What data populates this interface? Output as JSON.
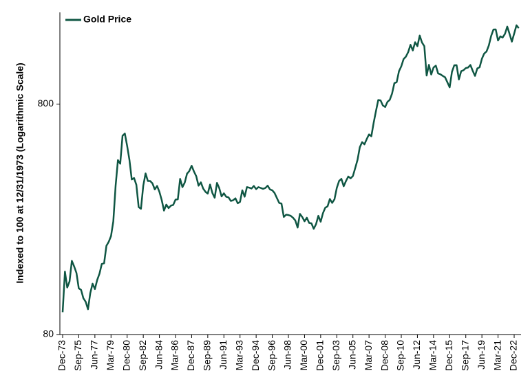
{
  "chart_data": {
    "type": "line",
    "y_label": "Indexed to 100 at 12/31/1973 (Logarithmic Scale)",
    "log_scale": true,
    "legend": "upper left",
    "ylim": [
      80,
      2000
    ],
    "yticks": [
      80,
      800
    ],
    "categories": [
      "Dec-73",
      null,
      null,
      null,
      null,
      null,
      null,
      "Sep-75",
      null,
      null,
      null,
      null,
      null,
      null,
      "Jun-77",
      null,
      null,
      null,
      null,
      null,
      null,
      "Mar-79",
      null,
      null,
      null,
      null,
      null,
      null,
      "Dec-80",
      null,
      null,
      null,
      null,
      null,
      null,
      "Sep-82",
      null,
      null,
      null,
      null,
      null,
      null,
      "Jun-84",
      null,
      null,
      null,
      null,
      null,
      null,
      "Mar-86",
      null,
      null,
      null,
      null,
      null,
      null,
      "Dec-87",
      null,
      null,
      null,
      null,
      null,
      null,
      "Sep-89",
      null,
      null,
      null,
      null,
      null,
      null,
      "Jun-91",
      null,
      null,
      null,
      null,
      null,
      null,
      "Mar-93",
      null,
      null,
      null,
      null,
      null,
      null,
      "Dec-94",
      null,
      null,
      null,
      null,
      null,
      null,
      "Sep-96",
      null,
      null,
      null,
      null,
      null,
      null,
      "Jun-98",
      null,
      null,
      null,
      null,
      null,
      null,
      "Mar-00",
      null,
      null,
      null,
      null,
      null,
      null,
      "Dec-01",
      null,
      null,
      null,
      null,
      null,
      null,
      "Sep-03",
      null,
      null,
      null,
      null,
      null,
      null,
      "Jun-05",
      null,
      null,
      null,
      null,
      null,
      null,
      "Mar-07",
      null,
      null,
      null,
      null,
      null,
      null,
      "Dec-08",
      null,
      null,
      null,
      null,
      null,
      null,
      "Sep-10",
      null,
      null,
      null,
      null,
      null,
      null,
      "Jun-12",
      null,
      null,
      null,
      null,
      null,
      null,
      "Mar-14",
      null,
      null,
      null,
      null,
      null,
      null,
      "Dec-15",
      null,
      null,
      null,
      null,
      null,
      null,
      "Sep-17",
      null,
      null,
      null,
      null,
      null,
      null,
      "Jun-19",
      null,
      null,
      null,
      null,
      null,
      null,
      "Mar-21",
      null,
      null,
      null,
      null,
      null,
      null,
      "Dec-22",
      null,
      null
    ],
    "series": [
      {
        "name": "Gold Price",
        "color": "#0f5643",
        "values": [
          100,
          150,
          128,
          136,
          167,
          158,
          148,
          127,
          125,
          115,
          111,
          103,
          121,
          133,
          126,
          138,
          147,
          162,
          163,
          194,
          202,
          214,
          248,
          354,
          457,
          441,
          583,
          596,
          527,
          458,
          377,
          382,
          357,
          286,
          281,
          354,
          400,
          371,
          371,
          362,
          341,
          353,
          333,
          307,
          276,
          293,
          283,
          290,
          292,
          308,
          309,
          379,
          349,
          365,
          399,
          410,
          432,
          408,
          389,
          354,
          366,
          344,
          333,
          327,
          358,
          329,
          314,
          364,
          345,
          318,
          328,
          317,
          315,
          304,
          306,
          312,
          297,
          301,
          338,
          317,
          349,
          347,
          344,
          353,
          342,
          349,
          346,
          343,
          346,
          354,
          341,
          338,
          329,
          313,
          298,
          296,
          259,
          265,
          264,
          262,
          257,
          250,
          233,
          267,
          259,
          248,
          257,
          244,
          243,
          230,
          241,
          262,
          247,
          269,
          284,
          288,
          310,
          298,
          309,
          346,
          371,
          379,
          352,
          371,
          388,
          381,
          390,
          422,
          458,
          520,
          547,
          535,
          564,
          591,
          580,
          663,
          745,
          833,
          830,
          789,
          777,
          818,
          835,
          889,
          986,
          996,
          1111,
          1167,
          1254,
          1285,
          1345,
          1446,
          1367,
          1484,
          1427,
          1586,
          1479,
          1427,
          1064,
          1184,
          1075,
          1153,
          1174,
          1086,
          1077,
          1060,
          1046,
          995,
          946,
          1104,
          1179,
          1180,
          1023,
          1111,
          1122,
          1146,
          1153,
          1182,
          1116,
          1060,
          1142,
          1156,
          1258,
          1326,
          1353,
          1437,
          1579,
          1684,
          1686,
          1510,
          1574,
          1556,
          1613,
          1734,
          1613,
          1493,
          1618,
          1758,
          1707
        ]
      }
    ]
  }
}
